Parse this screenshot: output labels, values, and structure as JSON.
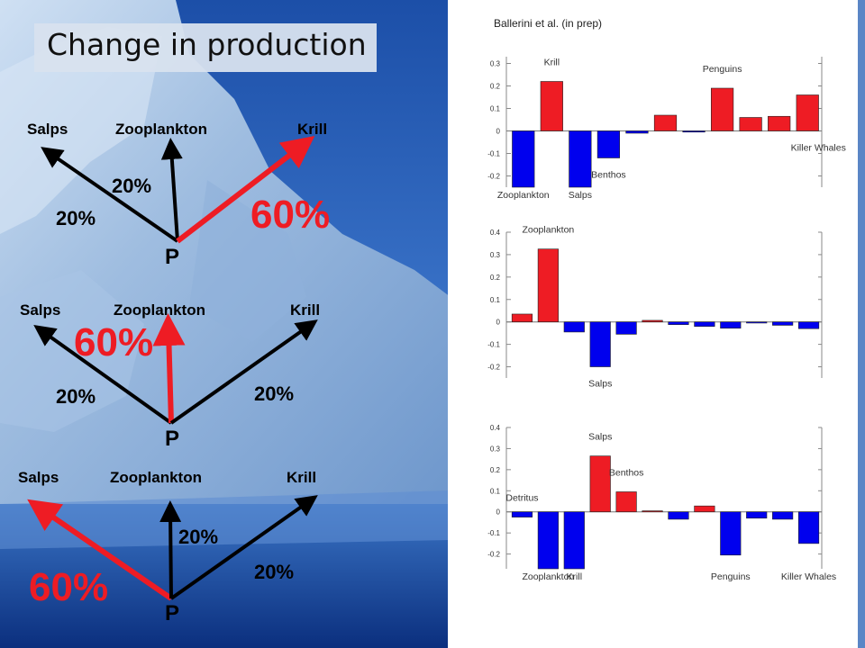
{
  "slide": {
    "title": "Change in production",
    "citation": "Ballerini et al. (in prep)"
  },
  "scenarios": [
    {
      "labels": {
        "salps": "Salps",
        "zooplankton": "Zooplankton",
        "krill": "Krill"
      },
      "salps_pct": "20%",
      "zooplankton_pct": "20%",
      "krill_pct": "60%",
      "dominant": "krill",
      "origin": "P"
    },
    {
      "labels": {
        "salps": "Salps",
        "zooplankton": "Zooplankton",
        "krill": "Krill"
      },
      "salps_pct": "20%",
      "zooplankton_pct": "60%",
      "krill_pct": "20%",
      "dominant": "zooplankton",
      "origin": "P"
    },
    {
      "labels": {
        "salps": "Salps",
        "zooplankton": "Zooplankton",
        "krill": "Krill"
      },
      "salps_pct": "60%",
      "zooplankton_pct": "20%",
      "krill_pct": "20%",
      "dominant": "salps",
      "origin": "P"
    }
  ],
  "colors": {
    "positive": "#ee1c24",
    "negative": "#0000ee",
    "highlight_arrow": "#ee1c24",
    "arrow": "#000000"
  },
  "chart_data": [
    {
      "type": "bar",
      "ylim": [
        -0.25,
        0.33
      ],
      "yticks": [
        -0.2,
        -0.1,
        0,
        0.1,
        0.2,
        0.3
      ],
      "ytick_labels": [
        "-0.2",
        "-0.1",
        "0",
        "0.1",
        "0.2",
        "0.3"
      ],
      "values": [
        -0.25,
        0.22,
        -0.25,
        -0.12,
        -0.01,
        0.07,
        -0.005,
        0.19,
        0.06,
        0.065,
        0.16
      ],
      "annotations": [
        {
          "text": "Krill",
          "bar": 1,
          "place": "above"
        },
        {
          "text": "Penguins",
          "bar": 7,
          "place": "above"
        },
        {
          "text": "Killer Whales",
          "bar": 10,
          "place": "below-right"
        },
        {
          "text": "Benthos",
          "bar": 3,
          "place": "below"
        },
        {
          "text": "Zooplankton",
          "bar": 0,
          "place": "bottom"
        },
        {
          "text": "Salps",
          "bar": 2,
          "place": "bottom"
        }
      ]
    },
    {
      "type": "bar",
      "ylim": [
        -0.25,
        0.4
      ],
      "yticks": [
        -0.2,
        -0.1,
        0,
        0.1,
        0.2,
        0.3,
        0.4
      ],
      "ytick_labels": [
        "-0.2",
        "-0.1",
        "0",
        "0.1",
        "0.2",
        "0.3",
        "0.4"
      ],
      "values": [
        0.035,
        0.325,
        -0.045,
        -0.2,
        -0.055,
        0.007,
        -0.012,
        -0.02,
        -0.028,
        -0.005,
        -0.015,
        -0.03
      ],
      "annotations": [
        {
          "text": "Zooplankton",
          "bar": 1,
          "place": "above"
        },
        {
          "text": "Salps",
          "bar": 3,
          "place": "below"
        }
      ]
    },
    {
      "type": "bar",
      "ylim": [
        -0.27,
        0.4
      ],
      "yticks": [
        -0.2,
        -0.1,
        0,
        0.1,
        0.2,
        0.3,
        0.4
      ],
      "ytick_labels": [
        "-0.2",
        "-0.1",
        "0",
        "0.1",
        "0.2",
        "0.3",
        "0.4"
      ],
      "values": [
        -0.025,
        -0.27,
        -0.27,
        0.265,
        0.095,
        0.005,
        -0.035,
        0.028,
        -0.205,
        -0.03,
        -0.035,
        -0.15
      ],
      "annotations": [
        {
          "text": "Salps",
          "bar": 3,
          "place": "above"
        },
        {
          "text": "Benthos",
          "bar": 4,
          "place": "above"
        },
        {
          "text": "Detritus",
          "bar": 0,
          "place": "above"
        },
        {
          "text": "Zooplankton",
          "bar": 1,
          "place": "bottom"
        },
        {
          "text": "Krill",
          "bar": 2,
          "place": "bottom"
        },
        {
          "text": "Penguins",
          "bar": 8,
          "place": "bottom"
        },
        {
          "text": "Killer Whales",
          "bar": 11,
          "place": "bottom"
        }
      ]
    }
  ]
}
